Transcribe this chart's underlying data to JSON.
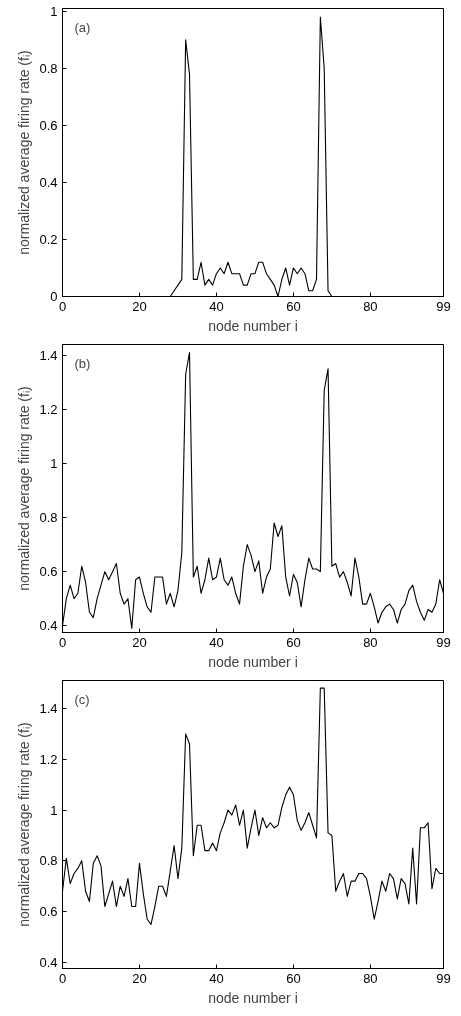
{
  "chart_data": [
    {
      "type": "line",
      "xlabel": "node number i",
      "ylabel": "normalized average firing rate (fᵢ)",
      "annotations": [
        "(a)"
      ],
      "xlim": [
        0,
        99
      ],
      "ylim": [
        0,
        1.01
      ],
      "xticks": [
        0,
        20,
        40,
        60,
        80,
        99
      ],
      "yticks": [
        0,
        0.2,
        0.4,
        0.6,
        0.8,
        1
      ],
      "x": [
        0,
        1,
        2,
        3,
        4,
        5,
        6,
        7,
        8,
        9,
        10,
        11,
        12,
        13,
        14,
        15,
        16,
        17,
        18,
        19,
        20,
        21,
        22,
        23,
        24,
        25,
        26,
        27,
        28,
        29,
        30,
        31,
        32,
        33,
        34,
        35,
        36,
        37,
        38,
        39,
        40,
        41,
        42,
        43,
        44,
        45,
        46,
        47,
        48,
        49,
        50,
        51,
        52,
        53,
        54,
        55,
        56,
        57,
        58,
        59,
        60,
        61,
        62,
        63,
        64,
        65,
        66,
        67,
        68,
        69,
        70,
        71,
        72,
        73,
        74,
        75,
        76,
        77,
        78,
        79,
        80,
        81,
        82,
        83,
        84,
        85,
        86,
        87,
        88,
        89,
        90,
        91,
        92,
        93,
        94,
        95,
        96,
        97,
        98,
        99
      ],
      "series": [
        {
          "color": "#000000",
          "values": [
            0,
            0,
            0,
            0,
            0,
            0,
            0,
            0,
            0,
            0,
            0,
            0,
            0,
            0,
            0,
            0,
            0,
            0,
            0,
            0,
            0,
            0,
            0,
            0,
            0,
            0,
            0,
            0,
            0,
            0.02,
            0.04,
            0.06,
            0.9,
            0.78,
            0.06,
            0.06,
            0.12,
            0.04,
            0.06,
            0.04,
            0.08,
            0.1,
            0.08,
            0.12,
            0.08,
            0.08,
            0.08,
            0.04,
            0.04,
            0.08,
            0.08,
            0.12,
            0.12,
            0.08,
            0.06,
            0.04,
            0,
            0.06,
            0.1,
            0.04,
            0.1,
            0.08,
            0.1,
            0.08,
            0.02,
            0.02,
            0.06,
            0.98,
            0.8,
            0.02,
            0,
            0,
            0,
            0,
            0,
            0,
            0,
            0,
            0,
            0,
            0,
            0,
            0,
            0,
            0,
            0,
            0,
            0,
            0,
            0,
            0,
            0,
            0,
            0,
            0,
            0,
            0,
            0,
            0,
            0
          ]
        }
      ]
    },
    {
      "type": "line",
      "xlabel": "node number i",
      "ylabel": "normalized average firing rate (fᵢ)",
      "annotations": [
        "(b)"
      ],
      "xlim": [
        0,
        99
      ],
      "ylim": [
        0.375,
        1.44
      ],
      "xticks": [
        0,
        20,
        40,
        60,
        80,
        99
      ],
      "yticks": [
        0.4,
        0.6,
        0.8,
        1,
        1.2,
        1.4
      ],
      "x": [
        0,
        1,
        2,
        3,
        4,
        5,
        6,
        7,
        8,
        9,
        10,
        11,
        12,
        13,
        14,
        15,
        16,
        17,
        18,
        19,
        20,
        21,
        22,
        23,
        24,
        25,
        26,
        27,
        28,
        29,
        30,
        31,
        32,
        33,
        34,
        35,
        36,
        37,
        38,
        39,
        40,
        41,
        42,
        43,
        44,
        45,
        46,
        47,
        48,
        49,
        50,
        51,
        52,
        53,
        54,
        55,
        56,
        57,
        58,
        59,
        60,
        61,
        62,
        63,
        64,
        65,
        66,
        67,
        68,
        69,
        70,
        71,
        72,
        73,
        74,
        75,
        76,
        77,
        78,
        79,
        80,
        81,
        82,
        83,
        84,
        85,
        86,
        87,
        88,
        89,
        90,
        91,
        92,
        93,
        94,
        95,
        96,
        97,
        98,
        99
      ],
      "series": [
        {
          "color": "#000000",
          "values": [
            0.4,
            0.5,
            0.55,
            0.5,
            0.52,
            0.62,
            0.56,
            0.45,
            0.43,
            0.5,
            0.55,
            0.6,
            0.57,
            0.6,
            0.63,
            0.52,
            0.48,
            0.5,
            0.39,
            0.57,
            0.58,
            0.52,
            0.47,
            0.45,
            0.58,
            0.58,
            0.58,
            0.48,
            0.52,
            0.47,
            0.53,
            0.67,
            1.33,
            1.41,
            0.58,
            0.62,
            0.52,
            0.57,
            0.65,
            0.57,
            0.58,
            0.65,
            0.57,
            0.55,
            0.58,
            0.52,
            0.48,
            0.62,
            0.7,
            0.66,
            0.6,
            0.64,
            0.52,
            0.58,
            0.61,
            0.78,
            0.73,
            0.77,
            0.58,
            0.51,
            0.59,
            0.56,
            0.47,
            0.57,
            0.65,
            0.61,
            0.61,
            0.6,
            1.27,
            1.35,
            0.62,
            0.63,
            0.58,
            0.6,
            0.56,
            0.51,
            0.65,
            0.58,
            0.48,
            0.48,
            0.52,
            0.47,
            0.41,
            0.45,
            0.47,
            0.48,
            0.46,
            0.41,
            0.46,
            0.48,
            0.53,
            0.55,
            0.49,
            0.45,
            0.42,
            0.46,
            0.45,
            0.48,
            0.57,
            0.52
          ]
        }
      ]
    },
    {
      "type": "line",
      "xlabel": "node number i",
      "ylabel": "normalized average firing rate (fᵢ)",
      "annotations": [
        "(c)"
      ],
      "xlim": [
        0,
        99
      ],
      "ylim": [
        0.376,
        1.51
      ],
      "xticks": [
        0,
        20,
        40,
        60,
        80,
        99
      ],
      "yticks": [
        0.4,
        0.6,
        0.8,
        1,
        1.2,
        1.4
      ],
      "x": [
        0,
        1,
        2,
        3,
        4,
        5,
        6,
        7,
        8,
        9,
        10,
        11,
        12,
        13,
        14,
        15,
        16,
        17,
        18,
        19,
        20,
        21,
        22,
        23,
        24,
        25,
        26,
        27,
        28,
        29,
        30,
        31,
        32,
        33,
        34,
        35,
        36,
        37,
        38,
        39,
        40,
        41,
        42,
        43,
        44,
        45,
        46,
        47,
        48,
        49,
        50,
        51,
        52,
        53,
        54,
        55,
        56,
        57,
        58,
        59,
        60,
        61,
        62,
        63,
        64,
        65,
        66,
        67,
        68,
        69,
        70,
        71,
        72,
        73,
        74,
        75,
        76,
        77,
        78,
        79,
        80,
        81,
        82,
        83,
        84,
        85,
        86,
        87,
        88,
        89,
        90,
        91,
        92,
        93,
        94,
        95,
        96,
        97,
        98,
        99
      ],
      "series": [
        {
          "color": "#000000",
          "values": [
            0.68,
            0.81,
            0.71,
            0.75,
            0.77,
            0.8,
            0.68,
            0.64,
            0.79,
            0.82,
            0.78,
            0.62,
            0.67,
            0.72,
            0.62,
            0.7,
            0.66,
            0.73,
            0.62,
            0.62,
            0.79,
            0.67,
            0.57,
            0.55,
            0.62,
            0.7,
            0.7,
            0.66,
            0.76,
            0.86,
            0.73,
            0.85,
            1.3,
            1.26,
            0.82,
            0.94,
            0.94,
            0.84,
            0.84,
            0.87,
            0.84,
            0.91,
            0.95,
            1.0,
            0.98,
            1.02,
            0.94,
            1.0,
            0.85,
            0.93,
            1.0,
            0.9,
            0.97,
            0.93,
            0.95,
            0.93,
            0.94,
            1.01,
            1.06,
            1.09,
            1.06,
            0.96,
            0.92,
            0.95,
            0.99,
            0.94,
            0.89,
            1.48,
            1.48,
            0.91,
            0.9,
            0.68,
            0.72,
            0.75,
            0.66,
            0.72,
            0.72,
            0.75,
            0.75,
            0.73,
            0.66,
            0.57,
            0.64,
            0.72,
            0.68,
            0.75,
            0.73,
            0.65,
            0.73,
            0.71,
            0.63,
            0.85,
            0.63,
            0.93,
            0.93,
            0.95,
            0.69,
            0.77,
            0.75,
            0.75
          ]
        }
      ]
    }
  ]
}
